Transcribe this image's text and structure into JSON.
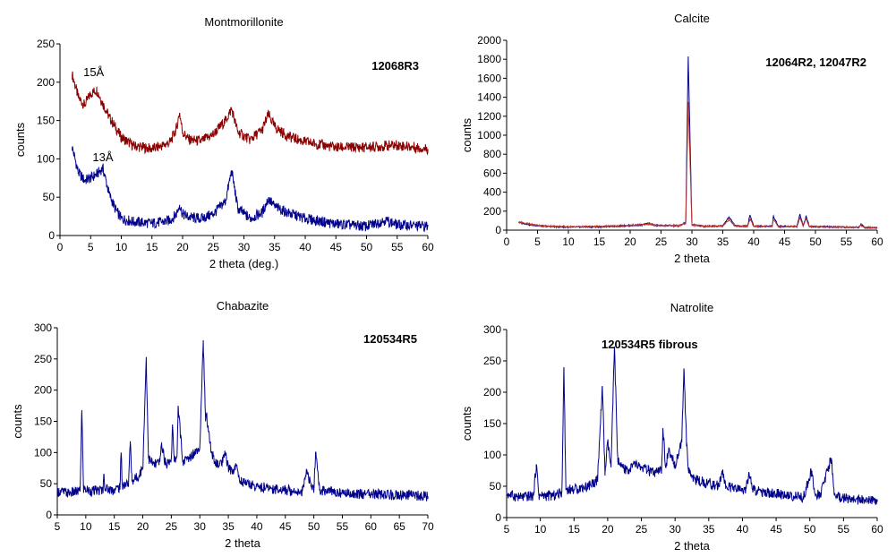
{
  "chart_data": [
    {
      "type": "line",
      "title": "Montmorillonite",
      "sample_label": "12068R3",
      "xlabel": "2 theta (deg.)",
      "ylabel": "counts",
      "xlim": [
        0,
        60
      ],
      "ylim": [
        0,
        250
      ],
      "xticks": [
        0,
        5,
        10,
        15,
        20,
        25,
        30,
        35,
        40,
        45,
        50,
        55,
        60
      ],
      "yticks": [
        0,
        50,
        100,
        150,
        200,
        250
      ],
      "annotations": [
        {
          "text": "15Å",
          "x": 5.5,
          "y": 208
        },
        {
          "text": "13Å",
          "x": 7.0,
          "y": 97
        }
      ],
      "series": [
        {
          "color": "#8b0000",
          "x": [
            2,
            3,
            4,
            5,
            6,
            7,
            8,
            9,
            10,
            12,
            15,
            17,
            18,
            19,
            19.5,
            20,
            21,
            23,
            25,
            27,
            28,
            29,
            31,
            33,
            34,
            35,
            37,
            40,
            45,
            50,
            55,
            60
          ],
          "y": [
            210,
            180,
            170,
            185,
            190,
            172,
            155,
            142,
            128,
            117,
            113,
            118,
            122,
            140,
            160,
            135,
            125,
            123,
            132,
            150,
            165,
            135,
            125,
            138,
            158,
            142,
            130,
            122,
            115,
            115,
            118,
            113
          ]
        },
        {
          "color": "#00008b",
          "x": [
            2,
            3,
            4,
            5,
            6,
            7,
            8,
            9,
            10,
            12,
            15,
            17,
            18,
            19,
            19.5,
            20,
            21,
            23,
            25,
            27,
            28,
            29,
            31,
            33,
            34,
            35,
            37,
            40,
            45,
            50,
            53,
            55,
            60
          ],
          "y": [
            115,
            82,
            72,
            75,
            80,
            88,
            55,
            35,
            22,
            18,
            16,
            18,
            20,
            28,
            40,
            28,
            24,
            22,
            28,
            45,
            85,
            35,
            22,
            30,
            48,
            38,
            30,
            22,
            15,
            12,
            20,
            14,
            12
          ]
        }
      ]
    },
    {
      "type": "line",
      "title": "Calcite",
      "sample_label": "12064R2, 12047R2",
      "xlabel": "2 theta",
      "ylabel": "counts",
      "xlim": [
        0,
        60
      ],
      "ylim": [
        0,
        2000
      ],
      "xticks": [
        0,
        5,
        10,
        15,
        20,
        25,
        30,
        35,
        40,
        45,
        50,
        55,
        60
      ],
      "yticks": [
        0,
        200,
        400,
        600,
        800,
        1000,
        1200,
        1400,
        1600,
        1800,
        2000
      ],
      "series": [
        {
          "color": "#00008b",
          "x": [
            2,
            4,
            6,
            10,
            15,
            20,
            22,
            23,
            24,
            28,
            29,
            29.4,
            30,
            32,
            35,
            36,
            37,
            39,
            39.4,
            40,
            43,
            43.2,
            44,
            47,
            47.5,
            48,
            48.5,
            49,
            52,
            55,
            57,
            57.4,
            58,
            60
          ],
          "y": [
            80,
            55,
            40,
            32,
            35,
            48,
            55,
            72,
            50,
            45,
            80,
            1830,
            60,
            40,
            45,
            140,
            45,
            40,
            160,
            42,
            42,
            150,
            40,
            40,
            170,
            45,
            150,
            40,
            35,
            30,
            30,
            60,
            28,
            25
          ]
        },
        {
          "color": "#c0392b",
          "x": [
            2,
            4,
            6,
            10,
            15,
            20,
            22,
            23,
            24,
            28,
            29,
            29.4,
            30,
            32,
            35,
            36,
            37,
            39,
            39.4,
            40,
            43,
            43.2,
            44,
            47,
            47.5,
            48,
            48.5,
            49,
            52,
            55,
            57,
            57.4,
            58,
            60
          ],
          "y": [
            85,
            60,
            45,
            35,
            38,
            50,
            58,
            68,
            52,
            48,
            70,
            1350,
            55,
            42,
            45,
            110,
            44,
            40,
            120,
            40,
            40,
            110,
            38,
            38,
            130,
            44,
            120,
            38,
            33,
            30,
            30,
            50,
            28,
            25
          ]
        }
      ]
    },
    {
      "type": "line",
      "title": "Chabazite",
      "sample_label": "120534R5",
      "xlabel": "2 theta",
      "ylabel": "counts",
      "xlim": [
        5,
        70
      ],
      "ylim": [
        0,
        300
      ],
      "xticks": [
        5,
        10,
        15,
        20,
        25,
        30,
        35,
        40,
        45,
        50,
        55,
        60,
        65,
        70
      ],
      "yticks": [
        0,
        50,
        100,
        150,
        200,
        250,
        300
      ],
      "series": [
        {
          "color": "#00008b",
          "x": [
            5,
            7,
            9,
            9.3,
            9.6,
            11,
            13,
            13.2,
            13.4,
            15,
            16,
            16.2,
            16.4,
            17.5,
            17.8,
            18.1,
            19,
            20,
            20.6,
            21,
            22,
            23,
            23.3,
            24,
            25,
            25.2,
            25.5,
            26,
            26.2,
            27,
            28,
            29,
            30,
            30.6,
            31,
            31.2,
            32,
            33,
            34,
            34.5,
            35,
            36,
            36.3,
            37,
            40,
            43,
            45,
            48,
            48.8,
            49.5,
            50,
            50.3,
            51,
            53,
            55,
            60,
            65,
            70
          ],
          "y": [
            38,
            35,
            38,
            168,
            42,
            38,
            40,
            65,
            42,
            40,
            45,
            100,
            48,
            50,
            118,
            55,
            60,
            75,
            252,
            90,
            80,
            85,
            115,
            80,
            90,
            145,
            85,
            95,
            175,
            85,
            90,
            100,
            110,
            280,
            150,
            160,
            100,
            80,
            85,
            98,
            75,
            70,
            82,
            55,
            45,
            42,
            40,
            38,
            72,
            45,
            38,
            100,
            40,
            38,
            35,
            33,
            32,
            30
          ]
        }
      ]
    },
    {
      "type": "line",
      "title": "Natrolite",
      "sample_label": "120534R5 fibrous",
      "xlabel": "2 theta",
      "ylabel": "counts",
      "xlim": [
        5,
        60
      ],
      "ylim": [
        0,
        300
      ],
      "xticks": [
        5,
        10,
        15,
        20,
        25,
        30,
        35,
        40,
        45,
        50,
        55,
        60
      ],
      "yticks": [
        0,
        50,
        100,
        150,
        200,
        250,
        300
      ],
      "series": [
        {
          "color": "#00008b",
          "x": [
            5,
            7,
            9,
            9.4,
            9.8,
            12,
            13.2,
            13.5,
            13.8,
            15,
            17,
            18.5,
            19.2,
            19.6,
            20,
            20.5,
            21,
            21.5,
            22,
            23,
            24,
            25,
            26,
            27,
            28,
            28.2,
            28.6,
            29,
            30,
            31,
            31.3,
            31.7,
            32,
            33,
            35,
            36.5,
            37,
            37.5,
            39,
            40.5,
            41,
            41.5,
            43,
            45,
            47,
            49,
            50.3,
            50.7,
            51.5,
            53.2,
            53.6,
            54.5,
            56,
            58,
            60
          ],
          "y": [
            38,
            32,
            35,
            85,
            35,
            35,
            40,
            240,
            45,
            45,
            50,
            60,
            210,
            70,
            120,
            80,
            272,
            90,
            80,
            75,
            85,
            80,
            75,
            70,
            75,
            143,
            80,
            105,
            85,
            120,
            238,
            120,
            75,
            60,
            55,
            50,
            75,
            50,
            45,
            45,
            70,
            45,
            40,
            38,
            35,
            32,
            75,
            40,
            35,
            95,
            38,
            32,
            30,
            28,
            25
          ]
        }
      ]
    }
  ]
}
